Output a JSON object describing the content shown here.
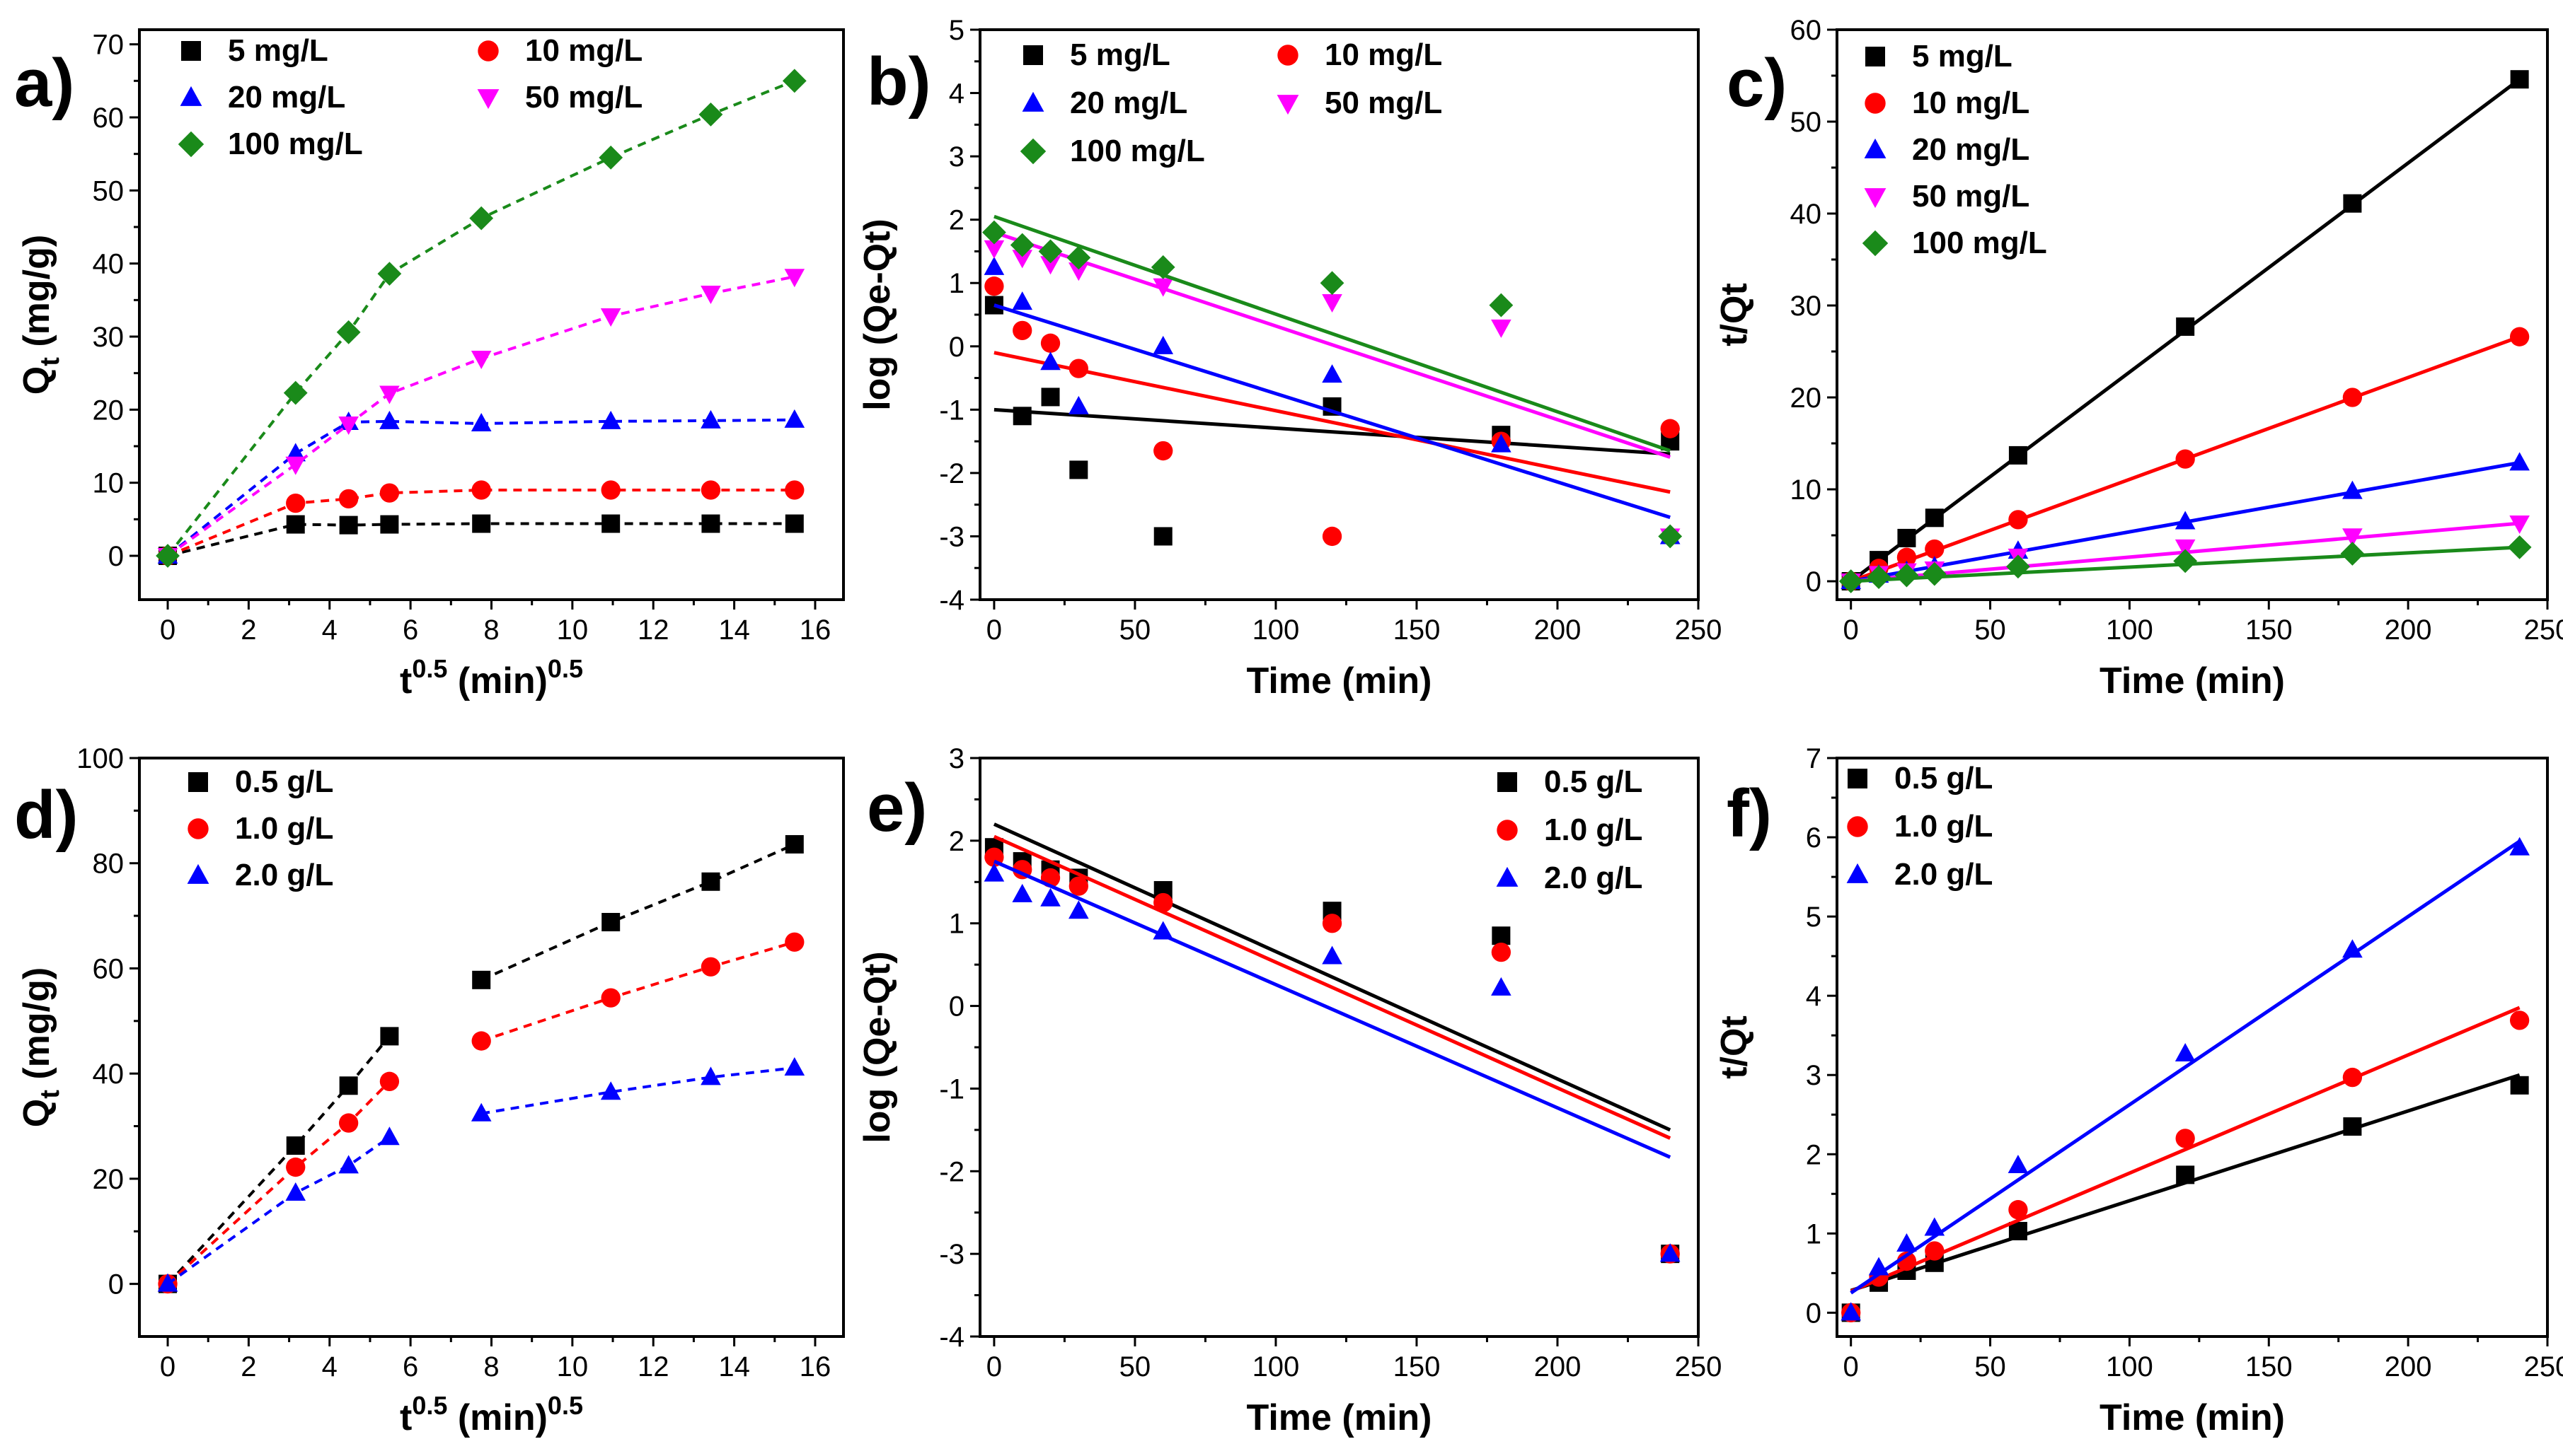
{
  "colors": {
    "black": "#000000",
    "red": "#ff0000",
    "blue": "#0000ff",
    "magenta": "#ff00ff",
    "green": "#1a8a1a"
  },
  "chart_data": [
    {
      "panel": "a)",
      "type": "line",
      "xlabel": "t^0.5 (min)^0.5",
      "xlabel_main": "t",
      "xlabel_sup1": "0.5",
      "xlabel_mid": " (min)",
      "xlabel_sup2": "0.5",
      "ylabel": "Qt (mg/g)",
      "ylabel_main": "Q",
      "ylabel_sub": "t",
      "ylabel_rest": " (mg/g)",
      "xlim": [
        -0.7,
        16.7
      ],
      "ylim": [
        -6,
        72
      ],
      "xticks": [
        0,
        2,
        4,
        6,
        8,
        10,
        12,
        14,
        16
      ],
      "yticks": [
        0,
        10,
        20,
        30,
        40,
        50,
        60,
        70
      ],
      "legend_position": "top-left",
      "legend_columns": 2,
      "series": [
        {
          "name": "5 mg/L",
          "color": "black",
          "marker": "square",
          "line": "dashed",
          "x": [
            0,
            3.16,
            4.47,
            5.48,
            7.75,
            10.95,
            13.42,
            15.49
          ],
          "y": [
            0,
            4.3,
            4.2,
            4.3,
            4.4,
            4.4,
            4.4,
            4.4
          ]
        },
        {
          "name": "10 mg/L",
          "color": "red",
          "marker": "circle",
          "line": "dashed",
          "x": [
            0,
            3.16,
            4.47,
            5.48,
            7.75,
            10.95,
            13.42,
            15.49
          ],
          "y": [
            0,
            7.2,
            7.8,
            8.6,
            9.0,
            9.0,
            9.0,
            9.0
          ]
        },
        {
          "name": "20 mg/L",
          "color": "blue",
          "marker": "triangle-up",
          "line": "dashed",
          "x": [
            0,
            3.16,
            4.47,
            5.48,
            7.75,
            10.95,
            13.42,
            15.49
          ],
          "y": [
            0,
            14.0,
            18.3,
            18.4,
            18.1,
            18.4,
            18.5,
            18.6
          ]
        },
        {
          "name": "50 mg/L",
          "color": "magenta",
          "marker": "triangle-down",
          "line": "dashed",
          "x": [
            0,
            3.16,
            4.47,
            5.48,
            7.75,
            10.95,
            13.42,
            15.49
          ],
          "y": [
            0,
            12.5,
            18.0,
            22.2,
            27.0,
            32.8,
            35.9,
            38.2
          ]
        },
        {
          "name": "100 mg/L",
          "color": "green",
          "marker": "diamond",
          "line": "dashed",
          "x": [
            0,
            3.16,
            4.47,
            5.48,
            7.75,
            10.95,
            13.42,
            15.49
          ],
          "y": [
            0,
            22.3,
            30.6,
            38.6,
            46.2,
            54.5,
            60.4,
            65.0
          ]
        }
      ]
    },
    {
      "panel": "b)",
      "type": "scatter",
      "xlabel": "Time (min)",
      "ylabel": "log (Qe-Qt)",
      "xlim": [
        -5,
        250
      ],
      "ylim": [
        -4,
        5
      ],
      "xticks": [
        0,
        50,
        100,
        150,
        200,
        250
      ],
      "yticks": [
        -4,
        -3,
        -2,
        -1,
        0,
        1,
        2,
        3,
        4,
        5
      ],
      "legend_position": "top-left",
      "legend_columns": 2,
      "series": [
        {
          "name": "5 mg/L",
          "color": "black",
          "marker": "square",
          "x": [
            0,
            10,
            20,
            30,
            60,
            120,
            180,
            240
          ],
          "y": [
            0.65,
            -1.1,
            -0.8,
            -1.95,
            -3.0,
            -0.95,
            -1.4,
            -1.5
          ],
          "fit": [
            [
              0,
              -1.0
            ],
            [
              240,
              -1.7
            ]
          ]
        },
        {
          "name": "10 mg/L",
          "color": "red",
          "marker": "circle",
          "x": [
            0,
            10,
            20,
            30,
            60,
            120,
            180,
            240
          ],
          "y": [
            0.95,
            0.25,
            0.05,
            -0.35,
            -1.65,
            -3.0,
            -1.5,
            -1.3
          ],
          "fit": [
            [
              0,
              -0.1
            ],
            [
              240,
              -2.3
            ]
          ]
        },
        {
          "name": "20 mg/L",
          "color": "blue",
          "marker": "triangle-up",
          "x": [
            0,
            10,
            20,
            30,
            60,
            120,
            180,
            240
          ],
          "y": [
            1.25,
            0.7,
            -0.25,
            -0.95,
            0.0,
            -0.45,
            -1.55,
            -3.0
          ],
          "fit": [
            [
              0,
              0.65
            ],
            [
              240,
              -2.7
            ]
          ]
        },
        {
          "name": "50 mg/L",
          "color": "magenta",
          "marker": "triangle-down",
          "x": [
            0,
            10,
            20,
            30,
            60,
            120,
            180,
            240
          ],
          "y": [
            1.55,
            1.4,
            1.3,
            1.2,
            0.95,
            0.7,
            0.3,
            -3.0
          ],
          "fit": [
            [
              0,
              1.8
            ],
            [
              240,
              -1.75
            ]
          ]
        },
        {
          "name": "100 mg/L",
          "color": "green",
          "marker": "diamond",
          "x": [
            0,
            10,
            20,
            30,
            60,
            120,
            180,
            240
          ],
          "y": [
            1.8,
            1.6,
            1.5,
            1.4,
            1.25,
            1.0,
            0.65,
            -3.0
          ],
          "fit": [
            [
              0,
              2.05
            ],
            [
              240,
              -1.65
            ]
          ]
        }
      ]
    },
    {
      "panel": "c)",
      "type": "scatter",
      "xlabel": "Time (min)",
      "ylabel": "t/Qt",
      "xlim": [
        -5,
        250
      ],
      "ylim": [
        -2,
        60
      ],
      "xticks": [
        0,
        50,
        100,
        150,
        200,
        250
      ],
      "yticks": [
        0,
        10,
        20,
        30,
        40,
        50,
        60
      ],
      "legend_position": "top-left",
      "legend_columns": 1,
      "series": [
        {
          "name": "5 mg/L",
          "color": "black",
          "marker": "square",
          "x": [
            0,
            10,
            20,
            30,
            60,
            120,
            180,
            240
          ],
          "y": [
            0,
            2.3,
            4.7,
            6.9,
            13.7,
            27.7,
            41.1,
            54.6
          ],
          "fit": [
            [
              0,
              0
            ],
            [
              240,
              54.6
            ]
          ]
        },
        {
          "name": "10 mg/L",
          "color": "red",
          "marker": "circle",
          "x": [
            0,
            10,
            20,
            30,
            60,
            120,
            180,
            240
          ],
          "y": [
            0,
            1.4,
            2.6,
            3.5,
            6.7,
            13.3,
            20.0,
            26.6
          ],
          "fit": [
            [
              0,
              0
            ],
            [
              240,
              26.6
            ]
          ]
        },
        {
          "name": "20 mg/L",
          "color": "blue",
          "marker": "triangle-up",
          "x": [
            0,
            10,
            20,
            30,
            60,
            120,
            180,
            240
          ],
          "y": [
            0,
            0.7,
            1.1,
            1.6,
            3.3,
            6.5,
            9.8,
            12.9
          ],
          "fit": [
            [
              0,
              0
            ],
            [
              240,
              12.9
            ]
          ]
        },
        {
          "name": "50 mg/L",
          "color": "magenta",
          "marker": "triangle-down",
          "x": [
            0,
            10,
            20,
            30,
            60,
            120,
            180,
            240
          ],
          "y": [
            0,
            0.8,
            1.1,
            1.3,
            2.7,
            3.7,
            4.9,
            6.3
          ],
          "fit": [
            [
              0,
              0
            ],
            [
              240,
              6.3
            ]
          ]
        },
        {
          "name": "100 mg/L",
          "color": "green",
          "marker": "diamond",
          "x": [
            0,
            10,
            20,
            30,
            60,
            120,
            180,
            240
          ],
          "y": [
            0,
            0.45,
            0.65,
            0.8,
            1.6,
            2.2,
            3.0,
            3.7
          ],
          "fit": [
            [
              0,
              0
            ],
            [
              240,
              3.7
            ]
          ]
        }
      ]
    },
    {
      "panel": "d)",
      "type": "line",
      "xlabel": "t^0.5 (min)^0.5",
      "xlabel_main": "t",
      "xlabel_sup1": "0.5",
      "xlabel_mid": " (min)",
      "xlabel_sup2": "0.5",
      "ylabel": "Qt (mg/g)",
      "ylabel_main": "Q",
      "ylabel_sub": "t",
      "ylabel_rest": " (mg/g)",
      "xlim": [
        -0.7,
        16.7
      ],
      "ylim": [
        -10,
        100
      ],
      "xticks": [
        0,
        2,
        4,
        6,
        8,
        10,
        12,
        14,
        16
      ],
      "yticks": [
        0,
        20,
        40,
        60,
        80,
        100
      ],
      "legend_position": "top-left",
      "legend_columns": 1,
      "series": [
        {
          "name": "0.5 g/L",
          "color": "black",
          "marker": "square",
          "line": "dashed-segments",
          "x": [
            0,
            3.16,
            4.47,
            5.48,
            7.75,
            10.95,
            13.42,
            15.49
          ],
          "y": [
            0,
            26.3,
            37.7,
            47.1,
            57.8,
            68.8,
            76.5,
            83.6
          ]
        },
        {
          "name": "1.0 g/L",
          "color": "red",
          "marker": "circle",
          "line": "dashed-segments",
          "x": [
            0,
            3.16,
            4.47,
            5.48,
            7.75,
            10.95,
            13.42,
            15.49
          ],
          "y": [
            0,
            22.2,
            30.6,
            38.5,
            46.2,
            54.4,
            60.3,
            65.0
          ]
        },
        {
          "name": "2.0 g/L",
          "color": "blue",
          "marker": "triangle-up",
          "line": "dashed-segments",
          "x": [
            0,
            3.16,
            4.47,
            5.48,
            7.75,
            10.95,
            13.42,
            15.49
          ],
          "y": [
            0,
            17.3,
            22.5,
            27.9,
            32.4,
            36.5,
            39.3,
            41.1
          ]
        }
      ],
      "segment_breaks": [
        [
          0,
          4
        ],
        [
          4,
          8
        ]
      ]
    },
    {
      "panel": "e)",
      "type": "scatter",
      "xlabel": "Time (min)",
      "ylabel": "log (Qe-Qt)",
      "xlim": [
        -5,
        250
      ],
      "ylim": [
        -4,
        3
      ],
      "xticks": [
        0,
        50,
        100,
        150,
        200,
        250
      ],
      "yticks": [
        -4,
        -3,
        -2,
        -1,
        0,
        1,
        2,
        3
      ],
      "legend_position": "top-right",
      "legend_columns": 1,
      "series": [
        {
          "name": "0.5 g/L",
          "color": "black",
          "marker": "square",
          "x": [
            0,
            10,
            20,
            30,
            60,
            120,
            180,
            240
          ],
          "y": [
            1.92,
            1.75,
            1.65,
            1.55,
            1.4,
            1.15,
            0.85,
            -3.0
          ],
          "fit": [
            [
              0,
              2.2
            ],
            [
              240,
              -1.5
            ]
          ]
        },
        {
          "name": "1.0 g/L",
          "color": "red",
          "marker": "circle",
          "x": [
            0,
            10,
            20,
            30,
            60,
            120,
            180,
            240
          ],
          "y": [
            1.8,
            1.65,
            1.55,
            1.45,
            1.25,
            1.0,
            0.65,
            -3.0
          ],
          "fit": [
            [
              0,
              2.05
            ],
            [
              240,
              -1.6
            ]
          ]
        },
        {
          "name": "2.0 g/L",
          "color": "blue",
          "marker": "triangle-up",
          "x": [
            0,
            10,
            20,
            30,
            60,
            120,
            180,
            240
          ],
          "y": [
            1.6,
            1.35,
            1.3,
            1.15,
            0.9,
            0.6,
            0.22,
            -3.0
          ],
          "fit": [
            [
              0,
              1.75
            ],
            [
              240,
              -1.83
            ]
          ]
        }
      ]
    },
    {
      "panel": "f)",
      "type": "scatter",
      "xlabel": "Time (min)",
      "ylabel": "t/Qt",
      "xlim": [
        -5,
        250
      ],
      "ylim": [
        -0.3,
        7
      ],
      "xticks": [
        0,
        50,
        100,
        150,
        200,
        250
      ],
      "yticks": [
        0,
        1,
        2,
        3,
        4,
        5,
        6,
        7
      ],
      "legend_position": "top-left",
      "legend_columns": 1,
      "series": [
        {
          "name": "0.5 g/L",
          "color": "black",
          "marker": "square",
          "x": [
            0,
            10,
            20,
            30,
            60,
            120,
            180,
            240
          ],
          "y": [
            0,
            0.38,
            0.53,
            0.63,
            1.03,
            1.74,
            2.35,
            2.87
          ],
          "fit": [
            [
              0,
              0.28
            ],
            [
              240,
              3.0
            ]
          ]
        },
        {
          "name": "1.0 g/L",
          "color": "red",
          "marker": "circle",
          "x": [
            0,
            10,
            20,
            30,
            60,
            120,
            180,
            240
          ],
          "y": [
            0,
            0.45,
            0.65,
            0.78,
            1.3,
            2.2,
            2.97,
            3.69
          ],
          "fit": [
            [
              0,
              0.27
            ],
            [
              240,
              3.85
            ]
          ]
        },
        {
          "name": "2.0 g/L",
          "color": "blue",
          "marker": "triangle-up",
          "x": [
            0,
            10,
            20,
            30,
            60,
            120,
            180,
            240
          ],
          "y": [
            0,
            0.57,
            0.87,
            1.07,
            1.86,
            3.27,
            4.58,
            5.87
          ],
          "fit": [
            [
              0,
              0.25
            ],
            [
              240,
              5.95
            ]
          ]
        }
      ]
    }
  ]
}
